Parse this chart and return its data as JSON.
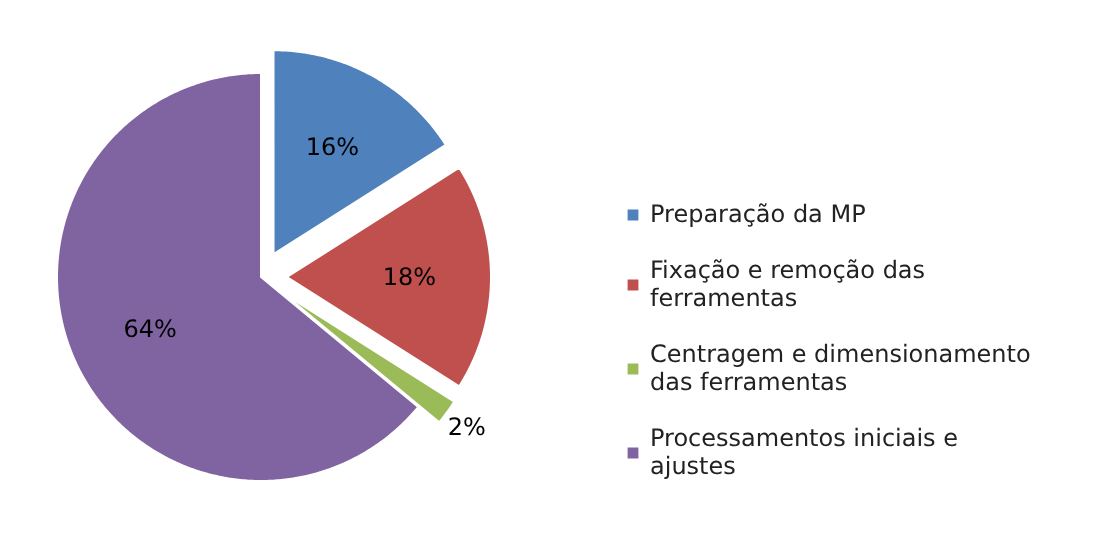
{
  "chart_data": {
    "type": "pie",
    "categories": [
      "Preparação da MP",
      "Fixação e remoção das ferramentas",
      "Centragem e dimensionamento das ferramentas",
      "Processamentos iniciais e ajustes"
    ],
    "values": [
      16,
      18,
      2,
      64
    ],
    "colors": [
      "#4f81bd",
      "#c0504d",
      "#9bbb59",
      "#8064a2"
    ],
    "value_labels": [
      "16%",
      "18%",
      "2%",
      "64%"
    ],
    "legend": "right"
  }
}
